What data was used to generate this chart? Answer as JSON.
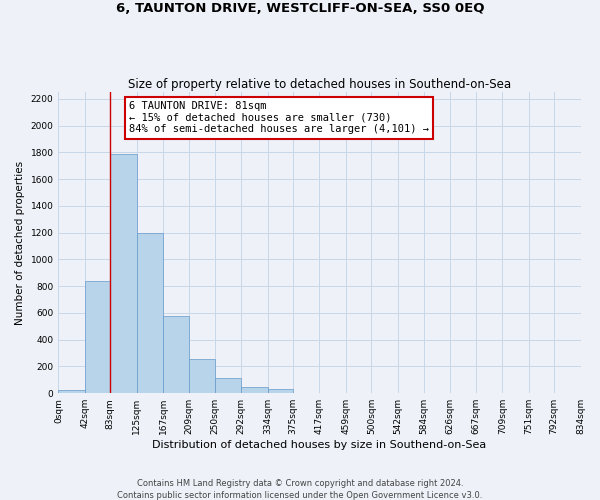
{
  "title": "6, TAUNTON DRIVE, WESTCLIFF-ON-SEA, SS0 0EQ",
  "subtitle": "Size of property relative to detached houses in Southend-on-Sea",
  "xlabel": "Distribution of detached houses by size in Southend-on-Sea",
  "ylabel": "Number of detached properties",
  "bar_edges": [
    0,
    42,
    83,
    125,
    167,
    209,
    250,
    292,
    334,
    375,
    417,
    459,
    500,
    542,
    584,
    626,
    667,
    709,
    751,
    792,
    834
  ],
  "bar_heights": [
    25,
    840,
    1790,
    1200,
    575,
    255,
    110,
    48,
    28,
    0,
    0,
    0,
    0,
    0,
    0,
    0,
    0,
    0,
    0,
    0
  ],
  "tick_labels": [
    "0sqm",
    "42sqm",
    "83sqm",
    "125sqm",
    "167sqm",
    "209sqm",
    "250sqm",
    "292sqm",
    "334sqm",
    "375sqm",
    "417sqm",
    "459sqm",
    "500sqm",
    "542sqm",
    "584sqm",
    "626sqm",
    "667sqm",
    "709sqm",
    "751sqm",
    "792sqm",
    "834sqm"
  ],
  "bar_color": "#b8d4ea",
  "bar_edge_color": "#6699cc",
  "property_line_x": 83,
  "property_line_color": "#cc0000",
  "annotation_line1": "6 TAUNTON DRIVE: 81sqm",
  "annotation_line2": "← 15% of detached houses are smaller (730)",
  "annotation_line3": "84% of semi-detached houses are larger (4,101) →",
  "annotation_box_color": "#ffffff",
  "annotation_box_edgecolor": "#cc0000",
  "ylim": [
    0,
    2250
  ],
  "yticks": [
    0,
    200,
    400,
    600,
    800,
    1000,
    1200,
    1400,
    1600,
    1800,
    2000,
    2200
  ],
  "grid_color": "#c8d8e8",
  "background_color": "#eef2f8",
  "footer_text": "Contains HM Land Registry data © Crown copyright and database right 2024.\nContains public sector information licensed under the Open Government Licence v3.0.",
  "title_fontsize": 9.5,
  "subtitle_fontsize": 8.5,
  "xlabel_fontsize": 8,
  "ylabel_fontsize": 7.5,
  "tick_fontsize": 6.5,
  "annotation_fontsize": 7.5,
  "footer_fontsize": 6
}
